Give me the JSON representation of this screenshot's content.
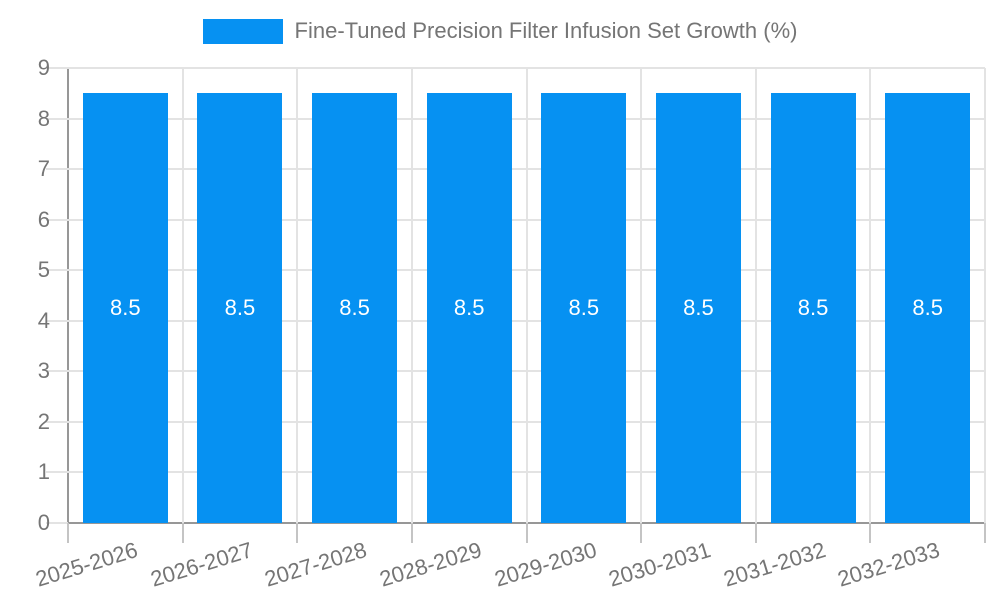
{
  "chart_data": {
    "type": "bar",
    "title": "Fine-Tuned Precision Filter Infusion Set Growth (%)",
    "categories": [
      "2025-2026",
      "2026-2027",
      "2027-2028",
      "2028-2029",
      "2029-2030",
      "2030-2031",
      "2031-2032",
      "2032-2033"
    ],
    "series": [
      {
        "name": "Fine-Tuned Precision Filter Infusion Set Growth (%)",
        "values": [
          8.5,
          8.5,
          8.5,
          8.5,
          8.5,
          8.5,
          8.5,
          8.5
        ],
        "bar_labels": [
          "8.5",
          "8.5",
          "8.5",
          "8.5",
          "8.5",
          "8.5",
          "8.5",
          "8.5"
        ]
      }
    ],
    "xlabel": "",
    "ylabel": "",
    "ylim": [
      0,
      9
    ],
    "yticks": [
      0,
      1,
      2,
      3,
      4,
      5,
      6,
      7,
      8,
      9
    ],
    "grid": true,
    "legend_position": "top"
  },
  "colors": {
    "bar": "#0691f2",
    "bar_value_label": "#ffffff",
    "axis_line": "#979797",
    "gridline": "#e3e3e3",
    "text": "#757575",
    "background": "#ffffff"
  }
}
